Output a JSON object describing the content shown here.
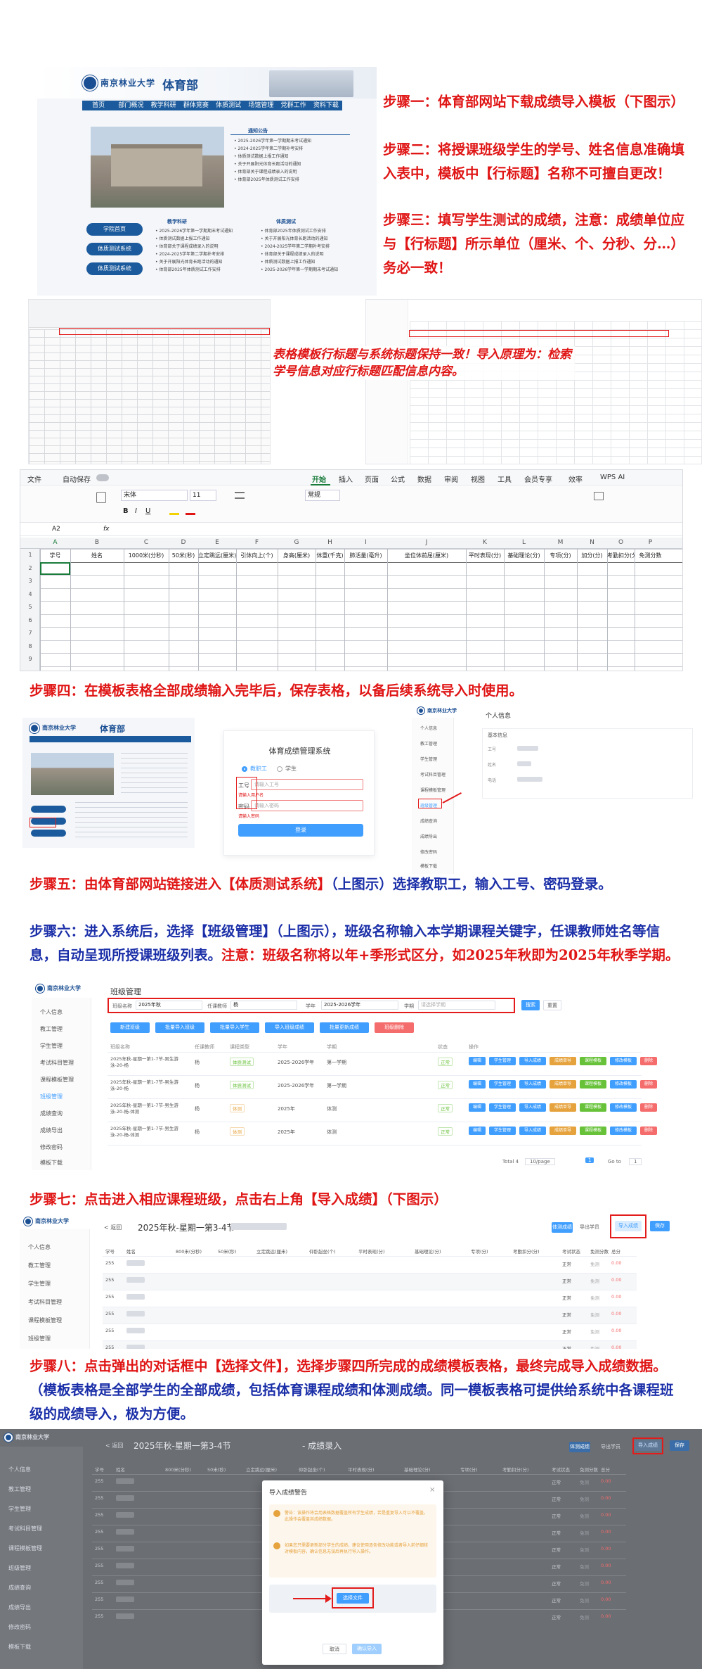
{
  "steps": {
    "s1": "步骤一：体育部网站下载成绩导入模板（下图示）",
    "s2": "步骤二：将授课班级学生的学号、姓名信息准确填入表中，模板中【行标题】名称不可擅自更改！",
    "s3": "步骤三：填写学生测试的成绩，注意：成绩单位应与【行标题】所示单位（厘米、个、分秒、分…）务必一致！",
    "note": "表格模板行标题与系统标题保持一致！导入原理为：检索学号信息对应行标题匹配信息内容。",
    "s4": "步骤四：在模板表格全部成绩输入完毕后，保存表格，以备后续系统导入时使用。",
    "s5a": "步骤五：由体育部网站链接进入",
    "s5b": "【体质测试系统】",
    "s5c": "（上图示）选择教职工，输入工号、密码登录。",
    "s6a": "步骤六：进入系统后，选择【班级管理】（上图示），班级名称输入本学期课程关键字，任课教师姓名等信息，自动呈现所授课班级列表。",
    "s6b": "注意：班级名称将以年+季形式区分，如2025年秋即为2025年秋季学期。",
    "s7": "步骤七：点击进入相应课程班级，点击右上角【导入成绩】（下图示）",
    "s8a": "步骤八：点击弹出的对话框中【选择文件】，选择步骤四所完成的成绩模板表格，最终完成导入成绩数据。",
    "s8b": "（模板表格是全部学生的全部成绩，包括体育课程成绩和体测成绩。同一模板表格可提供给系统中各课程班级的成绩导入，极为方便。"
  },
  "website": {
    "dept": "体育部",
    "nav": [
      "首页",
      "部门概况",
      "教学科研",
      "群体竞赛",
      "体质测试",
      "场馆管理",
      "党群工作",
      "资料下载"
    ],
    "buttons": [
      "学院首页",
      "体质测试系统",
      "体质测试系统"
    ],
    "news_title_1": "通知公告",
    "news_title_2": "教学科研",
    "news_title_3": "体质测试",
    "news_items": [
      "• 2025-2026学年第一学期期末考试通知",
      "• 2024-2025学年第二学期补考安排",
      "• 体质测试数据上报工作通知",
      "• 关于开展阳光体育长跑活动的通知",
      "• 体育部关于课程成绩录入的说明",
      "• 体育部2025年体质测试工作安排"
    ]
  },
  "excel": {
    "menu": [
      "文件",
      "自动保存",
      "开始",
      "插入",
      "页面",
      "公式",
      "数据",
      "审阅",
      "视图",
      "工具",
      "会员专享",
      "效率",
      "WPS AI"
    ],
    "font_name": "宋体",
    "font_size": "11",
    "format": "常规",
    "cell_ref": "A2",
    "fx": "fx",
    "col_letters": [
      "A",
      "B",
      "C",
      "D",
      "E",
      "F",
      "G",
      "H",
      "I",
      "J",
      "K",
      "L",
      "M",
      "N",
      "O",
      "P"
    ],
    "headers": [
      "学号",
      "姓名",
      "1000米(分秒)",
      "50米(秒)",
      "立定跳远(厘米)",
      "引体向上(个)",
      "身高(厘米)",
      "体重(千克)",
      "肺活量(毫升)",
      "坐位体前屈(厘米)",
      "平时表现(分)",
      "基础理论(分)",
      "专项(分)",
      "加分(分)",
      "考勤扣分(分)",
      "免测分数"
    ],
    "row_numbers": [
      "1",
      "2",
      "3",
      "4",
      "5",
      "6",
      "7",
      "8",
      "9"
    ]
  },
  "login": {
    "title": "体育成绩管理系统",
    "radio_staff": "教职工",
    "radio_student": "学生",
    "id_label": "工号",
    "id_placeholder": "请输入工号",
    "id_error": "请输入用户名",
    "pw_label": "密码",
    "pw_placeholder": "请输入密码",
    "pw_error": "请输入密码",
    "submit": "登录",
    "personal_info": "个人信息",
    "basic_info": "基本信息",
    "field_id": "工号",
    "field_name": "姓名",
    "field_phone": "电话"
  },
  "sidebar": [
    "个人信息",
    "教工管理",
    "学生管理",
    "考试科目管理",
    "课程模板管理",
    "班级管理",
    "成绩查询",
    "成绩导出",
    "修改密码",
    "模板下载"
  ],
  "class_mgmt": {
    "title": "班级管理",
    "filter_class_label": "班级名称",
    "filter_class_value": "2025年秋",
    "filter_teacher_label": "任课教师",
    "filter_teacher_value": "杨",
    "filter_year_label": "学年",
    "filter_year_value": "2025-2026学年",
    "filter_term_label": "学期",
    "filter_term_value": "请选择学期",
    "search": "搜索",
    "reset": "重置",
    "actions": [
      "新建班级",
      "批量导入班级",
      "批量导入学生",
      "导入班级成绩",
      "批量更新成绩",
      "班级删除"
    ],
    "columns": [
      "班级名称",
      "任课教师",
      "课程类型",
      "学年",
      "学期",
      "状态",
      "操作"
    ],
    "rows": [
      {
        "name": "2025年秋-星期一第1-7节-男生游泳-20-杨",
        "teacher": "杨",
        "type": "体质测试",
        "year": "2025-2026学年",
        "term": "第一学期",
        "status": "正常"
      },
      {
        "name": "2025年秋-星期一第1-7节-男生游泳-20-杨",
        "teacher": "杨",
        "type": "体质测试",
        "year": "2025-2026学年",
        "term": "第一学期",
        "status": "正常"
      },
      {
        "name": "2025年秋-星期一第1-7节-男生游泳-20-杨-体测",
        "teacher": "杨",
        "type": "体测",
        "year": "2025年",
        "term": "体测",
        "status": "正常"
      },
      {
        "name": "2025年秋-星期一第1-7节-男生游泳-20-杨-体测",
        "teacher": "杨",
        "type": "体测",
        "year": "2025年",
        "term": "体测",
        "status": "正常"
      }
    ],
    "row_ops": [
      "编辑",
      "学生管理",
      "导入成绩",
      "成绩单导",
      "课程模板",
      "修改模板",
      "删除"
    ],
    "pagination_total": "Total 4",
    "pagination_size": "10/page",
    "pagination_page": "1",
    "pagination_goto": "Go to",
    "pagination_goto_value": "1"
  },
  "class_detail": {
    "back": "< 返回",
    "title": "2025年秋-星期一第3-4节",
    "title_suffix": "- 成绩录入",
    "top_buttons": [
      "体测成绩",
      "导入成绩",
      "保存"
    ],
    "plain_button": "导出学员",
    "columns": [
      "学号",
      "姓名",
      "800米(分秒)",
      "50米(秒)",
      "立定跳远(厘米)",
      "仰卧起坐(个)",
      "平时表现(分)",
      "基础理论(分)",
      "专项(分)",
      "考勤扣分(分)",
      "考试状态",
      "免测分数",
      "总分"
    ],
    "row_prefix": "255",
    "status": "正常",
    "avoid": "免测",
    "score": "0.00"
  },
  "dialog": {
    "title": "导入成绩警告",
    "warn1": "警告：该操作将会用表格数据覆盖所有学生成绩，若是重复导入可以不覆盖，此操作会覆盖其成绩数据。",
    "warn2": "如果您只需要更新部分学生的成绩，建议使用逐条修改功能或者导入前仔细核对模板内容，确认信息无误后再执行导入操作。",
    "choose_file": "选择文件",
    "cancel": "取消",
    "confirm": "确认导入"
  },
  "colors": {
    "red": "#e01515",
    "blue": "#1b2fa8",
    "primary": "#409eff",
    "nav": "#1b5a9c"
  }
}
